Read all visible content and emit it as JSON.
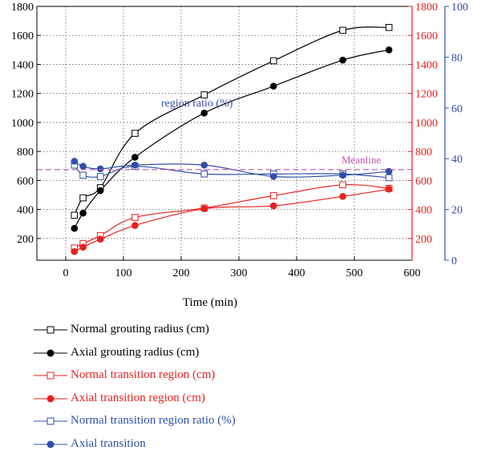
{
  "chart_data": {
    "type": "line",
    "xlabel": "Time (min)",
    "xlim": [
      -50,
      600
    ],
    "xticks": [
      0,
      100,
      200,
      300,
      400,
      500,
      600
    ],
    "ylim_left": [
      50,
      1800
    ],
    "yticks_left": [
      200,
      400,
      600,
      800,
      1000,
      1200,
      1400,
      1600,
      1800
    ],
    "ylim_red": [
      50,
      1800
    ],
    "yticks_red": [
      200,
      400,
      600,
      800,
      1000,
      1200,
      1400,
      1600,
      1800
    ],
    "ylim_right": [
      0,
      100
    ],
    "yticks_right": [
      0,
      20,
      40,
      60,
      80,
      100
    ],
    "grid": true,
    "annotations": {
      "region_ratio": "region ratio (%)",
      "meanline": "Meanline"
    },
    "meanline_value": 675,
    "series": [
      {
        "name": "Normal grouting radius (cm)",
        "axis": "left",
        "color": "#000000",
        "marker": "square-open",
        "x": [
          15,
          30,
          60,
          120,
          240,
          360,
          480,
          560
        ],
        "y": [
          360,
          480,
          550,
          925,
          1190,
          1425,
          1635,
          1655
        ]
      },
      {
        "name": "Axial grouting radius (cm)",
        "axis": "left",
        "color": "#000000",
        "marker": "circle-filled",
        "x": [
          15,
          30,
          60,
          120,
          240,
          360,
          480,
          560
        ],
        "y": [
          270,
          375,
          530,
          760,
          1065,
          1250,
          1430,
          1500
        ]
      },
      {
        "name": "Normal transition region (cm)",
        "axis": "red",
        "color": "#e8201e",
        "marker": "square-open",
        "x": [
          15,
          30,
          60,
          120,
          240,
          360,
          480,
          560
        ],
        "y": [
          135,
          165,
          220,
          345,
          410,
          495,
          570,
          545
        ]
      },
      {
        "name": "Axial transition region (cm)",
        "axis": "red",
        "color": "#e8201e",
        "marker": "circle-filled",
        "x": [
          15,
          30,
          60,
          120,
          240,
          360,
          480,
          560
        ],
        "y": [
          110,
          140,
          195,
          290,
          405,
          425,
          490,
          540
        ]
      },
      {
        "name": "Normal transition region ratio (%)",
        "axis": "right",
        "color": "#2f4fa8",
        "marker": "square-open",
        "x": [
          15,
          30,
          60,
          120,
          240,
          360,
          480,
          560
        ],
        "y": [
          37.5,
          33.5,
          33.0,
          37.0,
          34.0,
          34.0,
          34.0,
          32.5
        ]
      },
      {
        "name": "Axial transition",
        "axis": "right",
        "color": "#2f4fa8",
        "marker": "circle-filled",
        "x": [
          15,
          30,
          60,
          120,
          240,
          360,
          480,
          560
        ],
        "y": [
          39.0,
          37.0,
          36.0,
          37.5,
          37.5,
          33.0,
          33.5,
          35.0
        ]
      }
    ],
    "colors": {
      "black": "#000000",
      "red": "#e8201e",
      "blue": "#2f4fa8",
      "meanline": "#c050b0"
    }
  }
}
